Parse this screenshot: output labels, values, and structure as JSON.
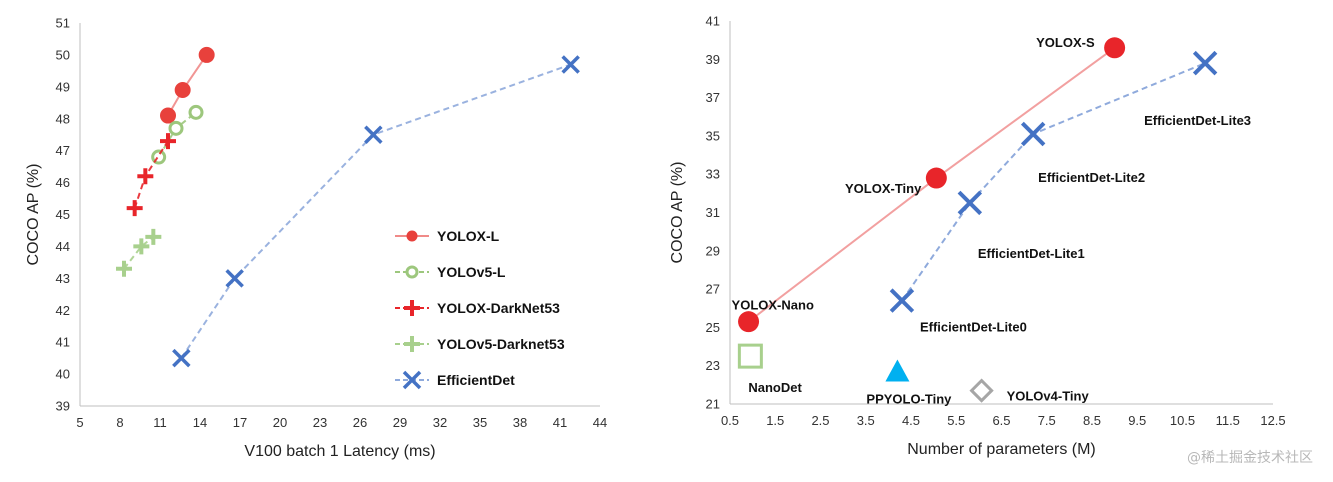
{
  "watermark": "@稀土掘金技术社区",
  "chart_data": [
    {
      "type": "line",
      "xlabel": "V100 batch 1 Latency (ms)",
      "ylabel": "COCO AP (%)",
      "xlim": [
        5,
        44
      ],
      "ylim": [
        39,
        51
      ],
      "xticks": [
        5,
        8,
        11,
        14,
        17,
        20,
        23,
        26,
        29,
        32,
        35,
        38,
        41,
        44
      ],
      "yticks": [
        39,
        40,
        41,
        42,
        43,
        44,
        45,
        46,
        47,
        48,
        49,
        50,
        51
      ],
      "grid": false,
      "legend_position": "lower-right",
      "series": [
        {
          "name": "YOLOX-L",
          "color": "#e8413c",
          "line": "solid",
          "marker": "filled-circle",
          "points": [
            {
              "x": 11.6,
              "y": 48.1
            },
            {
              "x": 12.7,
              "y": 48.9
            },
            {
              "x": 14.5,
              "y": 50.0
            }
          ]
        },
        {
          "name": "YOLOv5-L",
          "color": "#9dc77d",
          "line": "dashed",
          "marker": "open-circle",
          "points": [
            {
              "x": 10.9,
              "y": 46.8
            },
            {
              "x": 12.2,
              "y": 47.7
            },
            {
              "x": 13.7,
              "y": 48.2
            }
          ]
        },
        {
          "name": "YOLOX-DarkNet53",
          "color": "#e8252a",
          "line": "dashed",
          "marker": "plus",
          "points": [
            {
              "x": 9.1,
              "y": 45.2
            },
            {
              "x": 9.9,
              "y": 46.2
            },
            {
              "x": 11.6,
              "y": 47.3
            }
          ]
        },
        {
          "name": "YOLOv5-Darknet53",
          "color": "#a8d08d",
          "line": "dashed",
          "marker": "plus",
          "points": [
            {
              "x": 8.3,
              "y": 43.3
            },
            {
              "x": 9.6,
              "y": 44.0
            },
            {
              "x": 10.5,
              "y": 44.3
            }
          ]
        },
        {
          "name": "EfficientDet",
          "color": "#4472c4",
          "line": "dashed",
          "marker": "x",
          "points": [
            {
              "x": 12.6,
              "y": 40.5
            },
            {
              "x": 16.6,
              "y": 43.0
            },
            {
              "x": 27.0,
              "y": 47.5
            },
            {
              "x": 41.8,
              "y": 49.7
            }
          ]
        }
      ]
    },
    {
      "type": "scatter",
      "xlabel": "Number of parameters (M)",
      "ylabel": "COCO AP (%)",
      "xlim": [
        0.5,
        12.5
      ],
      "ylim": [
        21,
        41
      ],
      "xticks": [
        "0.5",
        "1.5",
        "2.5",
        "3.5",
        "4.5",
        "5.5",
        "6.5",
        "7.5",
        "8.5",
        "9.5",
        "10.5",
        "11.5",
        "12.5"
      ],
      "yticks": [
        21,
        23,
        25,
        27,
        29,
        31,
        33,
        35,
        37,
        39,
        41
      ],
      "grid": false,
      "series": [
        {
          "name": "YOLOX",
          "color": "#e8252a",
          "line": "solid",
          "line_color": "#f2a0a0",
          "marker": "filled-circle",
          "points": [
            {
              "label": "YOLOX-Nano",
              "x": 0.91,
              "y": 25.3
            },
            {
              "label": "YOLOX-Tiny",
              "x": 5.06,
              "y": 32.8
            },
            {
              "label": "YOLOX-S",
              "x": 9.0,
              "y": 39.6
            }
          ]
        },
        {
          "name": "EfficientDet-Lite",
          "color": "#4472c4",
          "line": "dashed",
          "line_color": "#8faadc",
          "marker": "x",
          "points": [
            {
              "label": "EfficientDet-Lite0",
              "x": 4.3,
              "y": 26.4
            },
            {
              "label": "EfficientDet-Lite1",
              "x": 5.8,
              "y": 31.5
            },
            {
              "label": "EfficientDet-Lite2",
              "x": 7.2,
              "y": 35.1
            },
            {
              "label": "EfficientDet-Lite3",
              "x": 11.0,
              "y": 38.8
            }
          ]
        },
        {
          "name": "NanoDet",
          "color": "#a8d08d",
          "line": "none",
          "marker": "open-square",
          "points": [
            {
              "label": "NanoDet",
              "x": 0.95,
              "y": 23.5
            }
          ]
        },
        {
          "name": "PPYOLO-Tiny",
          "color": "#00b0f0",
          "line": "none",
          "marker": "triangle",
          "points": [
            {
              "label": "PPYOLO-Tiny",
              "x": 4.2,
              "y": 22.7
            }
          ]
        },
        {
          "name": "YOLOv4-Tiny",
          "color": "#a6a6a6",
          "line": "none",
          "marker": "open-diamond",
          "points": [
            {
              "label": "YOLOv4-Tiny",
              "x": 6.06,
              "y": 21.7
            }
          ]
        }
      ]
    }
  ]
}
